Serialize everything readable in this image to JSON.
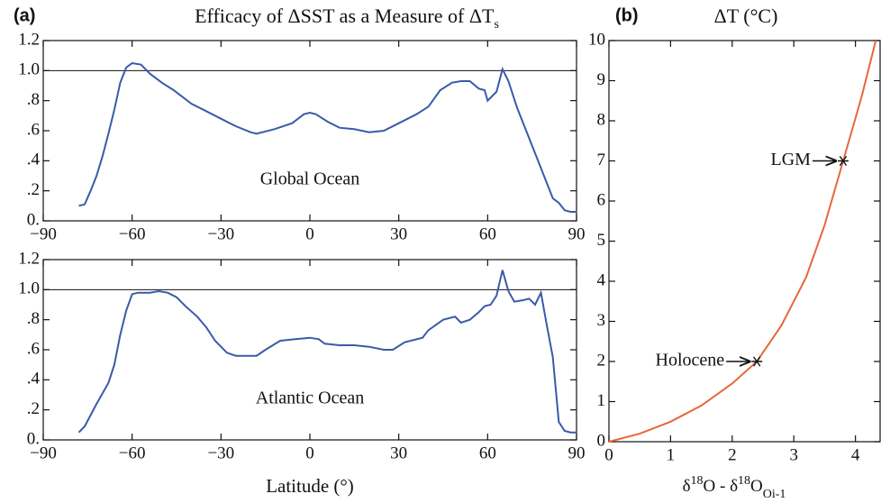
{
  "chart_data": [
    {
      "type": "line",
      "panel_label": "(a)",
      "title": [
        "Efficacy of ΔSST as a Measure of ΔT",
        "s"
      ],
      "annotation": "Global Ocean",
      "x": [
        -78,
        -76,
        -74,
        -72,
        -70,
        -68,
        -66,
        -64,
        -62,
        -60,
        -57,
        -54,
        -50,
        -46,
        -40,
        -35,
        -30,
        -25,
        -20,
        -18,
        -12,
        -6,
        -2,
        0,
        2,
        6,
        10,
        15,
        20,
        25,
        30,
        36,
        40,
        44,
        48,
        51,
        54,
        57,
        59,
        60,
        62,
        63,
        65,
        67,
        70,
        73,
        76,
        80,
        82,
        84,
        86,
        88,
        90
      ],
      "values": [
        0.1,
        0.11,
        0.2,
        0.3,
        0.43,
        0.58,
        0.74,
        0.92,
        1.02,
        1.05,
        1.04,
        0.98,
        0.92,
        0.87,
        0.78,
        0.73,
        0.68,
        0.63,
        0.59,
        0.58,
        0.61,
        0.65,
        0.71,
        0.72,
        0.71,
        0.66,
        0.62,
        0.61,
        0.59,
        0.6,
        0.65,
        0.71,
        0.76,
        0.87,
        0.92,
        0.93,
        0.93,
        0.88,
        0.87,
        0.8,
        0.84,
        0.86,
        1.01,
        0.93,
        0.75,
        0.6,
        0.45,
        0.25,
        0.15,
        0.12,
        0.07,
        0.06,
        0.06
      ],
      "color": "#3a5aa8",
      "reference_line": 1,
      "xlim": [
        -90,
        90
      ],
      "xticks": [
        {
          "value": -90,
          "label": "−90"
        },
        {
          "value": -60,
          "label": "−60"
        },
        {
          "value": -30,
          "label": "−30"
        },
        0,
        30,
        60,
        90
      ],
      "ylim": [
        0,
        1.2
      ],
      "yticks": [
        {
          "value": 0,
          "label": "0."
        },
        {
          "value": 0.2,
          "label": ".2"
        },
        {
          "value": 0.4,
          "label": ".4"
        },
        {
          "value": 0.6,
          "label": ".6"
        },
        {
          "value": 0.8,
          "label": ".8"
        },
        {
          "value": 1,
          "label": "1.0"
        },
        1.2
      ]
    },
    {
      "type": "line",
      "annotation": "Atlantic Ocean",
      "xlabel": "Latitude (°)",
      "x": [
        -78,
        -76,
        -72,
        -68,
        -66,
        -64,
        -62,
        -60,
        -58,
        -54,
        -51,
        -48,
        -45,
        -42,
        -38,
        -35,
        -32,
        -28,
        -25,
        -20,
        -18,
        -15,
        -10,
        -5,
        0,
        3,
        5,
        10,
        15,
        20,
        25,
        28,
        32,
        38,
        40,
        45,
        49,
        51,
        54,
        57,
        59,
        61,
        63,
        65,
        67,
        69,
        72,
        74,
        76,
        78,
        80,
        82,
        84,
        86,
        88,
        90
      ],
      "values": [
        0.05,
        0.09,
        0.24,
        0.38,
        0.5,
        0.7,
        0.86,
        0.97,
        0.98,
        0.98,
        0.99,
        0.98,
        0.95,
        0.89,
        0.82,
        0.75,
        0.66,
        0.58,
        0.56,
        0.56,
        0.56,
        0.6,
        0.66,
        0.67,
        0.68,
        0.67,
        0.64,
        0.63,
        0.63,
        0.62,
        0.6,
        0.6,
        0.65,
        0.68,
        0.73,
        0.8,
        0.82,
        0.78,
        0.8,
        0.85,
        0.89,
        0.9,
        0.96,
        1.13,
        0.99,
        0.92,
        0.93,
        0.94,
        0.9,
        0.98,
        0.76,
        0.55,
        0.12,
        0.06,
        0.05,
        0.05
      ],
      "color": "#3a5aa8",
      "reference_line": 1,
      "xlim": [
        -90,
        90
      ],
      "xticks": [
        {
          "value": -90,
          "label": "−90"
        },
        {
          "value": -60,
          "label": "−60"
        },
        {
          "value": -30,
          "label": "−30"
        },
        0,
        30,
        60,
        90
      ],
      "ylim": [
        0,
        1.2
      ],
      "yticks": [
        {
          "value": 0,
          "label": "0."
        },
        {
          "value": 0.2,
          "label": ".2"
        },
        {
          "value": 0.4,
          "label": ".4"
        },
        {
          "value": 0.6,
          "label": ".6"
        },
        {
          "value": 0.8,
          "label": ".8"
        },
        {
          "value": 1,
          "label": "1.0"
        },
        1.2
      ]
    },
    {
      "type": "line",
      "panel_label": "(b)",
      "title": "ΔT (°C)",
      "xlabel": [
        "δ",
        "18",
        "O - δ",
        "18",
        "O",
        "Oi-1"
      ],
      "x": [
        0,
        0.5,
        1,
        1.5,
        2,
        2.4,
        2.8,
        3.2,
        3.5,
        3.8,
        4.1,
        4.33
      ],
      "values": [
        0,
        0.2,
        0.5,
        0.9,
        1.45,
        2,
        2.9,
        4.1,
        5.4,
        7,
        8.6,
        10
      ],
      "color": "#e8673a",
      "points": [
        {
          "label": "Holocene",
          "x": 2.4,
          "y": 2
        },
        {
          "label": "LGM",
          "x": 3.8,
          "y": 7
        }
      ],
      "xlim": [
        0,
        4.4
      ],
      "xticks": [
        0,
        1,
        2,
        3,
        4
      ],
      "ylim": [
        0,
        10
      ],
      "yticks": [
        0,
        1,
        2,
        3,
        4,
        5,
        6,
        7,
        8,
        9,
        10
      ]
    }
  ]
}
